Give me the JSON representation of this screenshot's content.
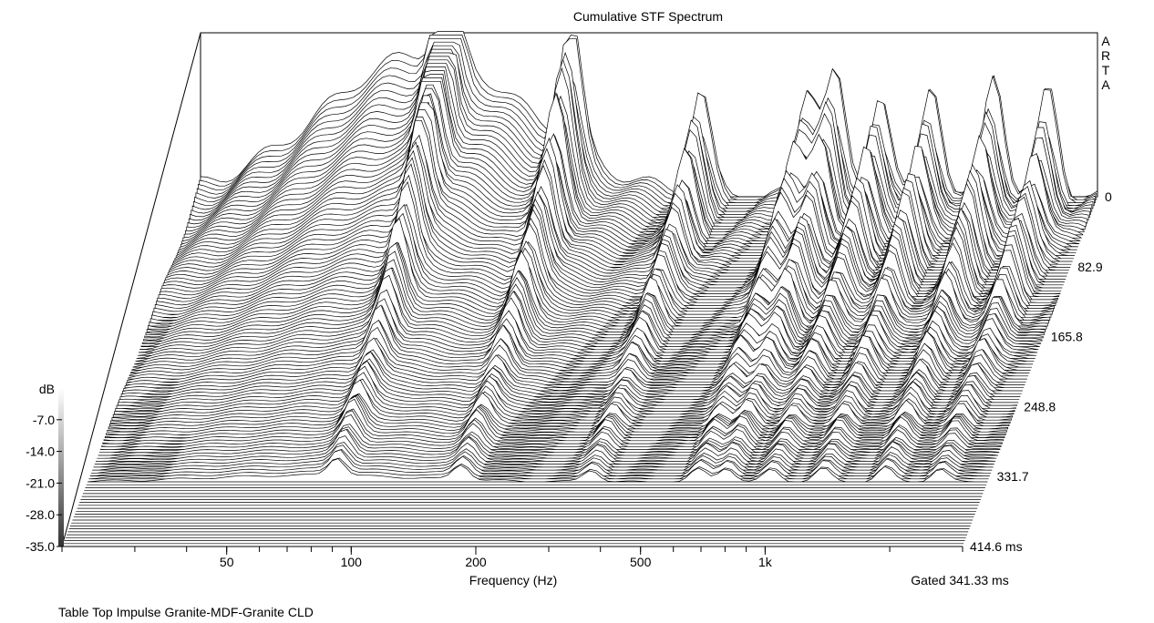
{
  "chart_data": {
    "type": "waterfall",
    "title": "Cumulative STF Spectrum",
    "brand": [
      "A",
      "R",
      "T",
      "A"
    ],
    "xlabel": "Frequency (Hz)",
    "x_scale": "log",
    "xlim": [
      20,
      3000
    ],
    "x_ticks": [
      {
        "value": 50,
        "label": "50"
      },
      {
        "value": 100,
        "label": "100"
      },
      {
        "value": 200,
        "label": "200"
      },
      {
        "value": 500,
        "label": "500"
      },
      {
        "value": 1000,
        "label": "1k"
      }
    ],
    "z_axis": {
      "unit": "dB",
      "range": [
        -35.0,
        0
      ],
      "ticks": [
        "-7.0",
        "-14.0",
        "-21.0",
        "-28.0",
        "-35.0"
      ],
      "top_label": "dB"
    },
    "time_axis": {
      "range_ms": [
        0,
        414.6
      ],
      "ticks": [
        "0",
        "82.9",
        "165.8",
        "248.8",
        "331.7",
        "414.6 ms"
      ],
      "tick_values_ms": [
        0,
        82.9,
        165.8,
        248.8,
        331.7,
        414.6
      ]
    },
    "gate_label": "Gated 341.33 ms",
    "slices": 120,
    "peaks": [
      {
        "freq": 80,
        "level": -3
      },
      {
        "freq": 160,
        "level": -8
      },
      {
        "freq": 330,
        "level": -14
      },
      {
        "freq": 600,
        "level": -12
      },
      {
        "freq": 700,
        "level": -10
      },
      {
        "freq": 900,
        "level": -13
      },
      {
        "freq": 1200,
        "level": -11
      },
      {
        "freq": 1700,
        "level": -9
      },
      {
        "freq": 2300,
        "level": -12
      }
    ],
    "grid": true,
    "legend": "none"
  },
  "footer": {
    "caption": "Table Top Impulse Granite-MDF-Granite CLD"
  }
}
